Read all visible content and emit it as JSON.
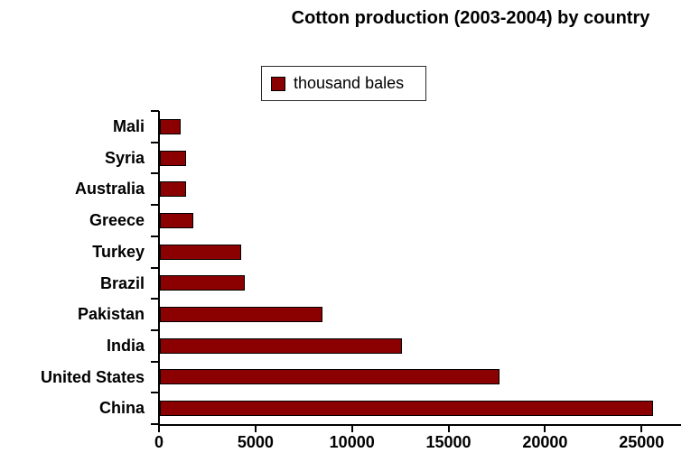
{
  "title": "Cotton production (2003-2004) by country",
  "legend": {
    "label": "thousand bales",
    "swatch_color": "#8B0000",
    "position": "top-center"
  },
  "chart_data": {
    "type": "bar",
    "orientation": "horizontal",
    "title": "Cotton production (2003-2004) by country",
    "series_label": "thousand bales",
    "categories": [
      "Mali",
      "Syria",
      "Australia",
      "Greece",
      "Turkey",
      "Brazil",
      "Pakistan",
      "India",
      "United States",
      "China"
    ],
    "values": [
      1070,
      1340,
      1370,
      1720,
      4230,
      4410,
      8400,
      12550,
      17600,
      25550
    ],
    "xlabel": "",
    "ylabel": "",
    "xlim": [
      0,
      27000
    ],
    "xticks": [
      0,
      5000,
      10000,
      15000,
      20000,
      25000
    ],
    "xtick_labels": [
      "0",
      "5000",
      "10000",
      "15000",
      "20000",
      "25000"
    ],
    "bar_color": "#8B0000",
    "bar_border_color": "#000000",
    "grid": false,
    "legend_position": "top-center"
  }
}
